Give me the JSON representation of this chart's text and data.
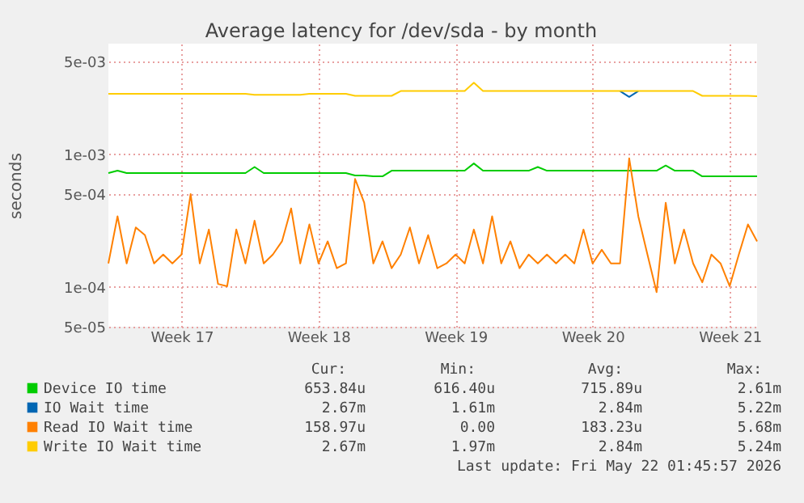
{
  "chart_data": {
    "type": "line",
    "title": "Average latency for /dev/sda - by month",
    "ylabel": "seconds",
    "log": true,
    "grid": true,
    "legend": "bottom",
    "categories": [
      null,
      null,
      null,
      null,
      null,
      null,
      null,
      null,
      "Week 17",
      null,
      null,
      null,
      null,
      null,
      null,
      null,
      null,
      null,
      null,
      null,
      null,
      null,
      null,
      "Week 18",
      null,
      null,
      null,
      null,
      null,
      null,
      null,
      null,
      null,
      null,
      null,
      null,
      null,
      null,
      "Week 19",
      null,
      null,
      null,
      null,
      null,
      null,
      null,
      null,
      null,
      null,
      null,
      null,
      null,
      null,
      "Week 20",
      null,
      null,
      null,
      null,
      null,
      null,
      null,
      null,
      null,
      null,
      null,
      null,
      null,
      null,
      "Week 21",
      null,
      null,
      null
    ],
    "ylim": [
      5e-05,
      0.0068
    ],
    "yticks": [
      {
        "value": 5e-05,
        "label": "5e-05"
      },
      {
        "value": 0.0001,
        "label": "1e-04"
      },
      {
        "value": 0.0005,
        "label": "5e-04"
      },
      {
        "value": 0.001,
        "label": "1e-03"
      },
      {
        "value": 0.005,
        "label": "5e-03"
      }
    ],
    "series": [
      {
        "name": "Device IO time",
        "color": "#00cc00",
        "values": [
          0.00072,
          0.00075,
          0.00072,
          0.00072,
          0.00072,
          0.00072,
          0.00072,
          0.00072,
          0.00072,
          0.00072,
          0.00072,
          0.00072,
          0.00072,
          0.00072,
          0.00072,
          0.00072,
          0.0008,
          0.00072,
          0.00072,
          0.00072,
          0.00072,
          0.00072,
          0.00072,
          0.00072,
          0.00072,
          0.00072,
          0.00072,
          0.00069,
          0.00069,
          0.00068,
          0.00068,
          0.00075,
          0.00075,
          0.00075,
          0.00075,
          0.00075,
          0.00075,
          0.00075,
          0.00075,
          0.00075,
          0.00085,
          0.00075,
          0.00075,
          0.00075,
          0.00075,
          0.00075,
          0.00075,
          0.0008,
          0.00075,
          0.00075,
          0.00075,
          0.00075,
          0.00075,
          0.00075,
          0.00075,
          0.00075,
          0.00075,
          0.00075,
          0.00075,
          0.00075,
          0.00075,
          0.00082,
          0.00075,
          0.00075,
          0.00075,
          0.00068,
          0.00068,
          0.00068,
          0.00068,
          0.00068,
          0.00068,
          0.00068
        ]
      },
      {
        "name": "IO Wait time",
        "color": "#0066b3",
        "values": [
          null,
          null,
          null,
          null,
          null,
          null,
          null,
          null,
          null,
          null,
          null,
          null,
          null,
          null,
          null,
          null,
          null,
          null,
          null,
          null,
          null,
          null,
          null,
          null,
          null,
          null,
          null,
          null,
          null,
          null,
          null,
          null,
          null,
          null,
          null,
          null,
          null,
          null,
          null,
          null,
          null,
          null,
          null,
          null,
          null,
          null,
          null,
          null,
          null,
          null,
          null,
          null,
          null,
          null,
          null,
          null,
          0.00299,
          0.0027,
          0.00299,
          null,
          null,
          null,
          null,
          null,
          null,
          null,
          null,
          null,
          null,
          null,
          null,
          null
        ]
      },
      {
        "name": "Read IO Wait time",
        "color": "#ff8000",
        "values": [
          0.00015,
          0.00034,
          0.00015,
          0.00028,
          0.000245,
          0.00015,
          0.000175,
          0.00015,
          0.000175,
          0.0005,
          0.00015,
          0.00027,
          0.000105,
          0.000101,
          0.00027,
          0.00015,
          0.000315,
          0.00015,
          0.000175,
          0.00022,
          0.00039,
          0.00015,
          0.000295,
          0.00015,
          0.00022,
          0.000138,
          0.00015,
          0.00065,
          0.00043,
          0.00015,
          0.00022,
          0.000138,
          0.000175,
          0.00028,
          0.00015,
          0.000245,
          0.000138,
          0.00015,
          0.000175,
          0.00015,
          0.00027,
          0.00015,
          0.00034,
          0.00015,
          0.00022,
          0.000138,
          0.000175,
          0.00015,
          0.000175,
          0.00015,
          0.000175,
          0.00015,
          0.00027,
          0.00015,
          0.00019,
          0.00015,
          0.00015,
          0.00093,
          0.00034,
          0.000175,
          9.1e-05,
          0.00043,
          0.00015,
          0.00027,
          0.00015,
          0.000108,
          0.000175,
          0.00015,
          0.000101,
          0.000175,
          0.000295,
          0.00022
        ]
      },
      {
        "name": "Write IO Wait time",
        "color": "#ffcc00",
        "values": [
          0.00285,
          0.00285,
          0.00285,
          0.00285,
          0.00285,
          0.00285,
          0.00285,
          0.00285,
          0.00285,
          0.00285,
          0.00285,
          0.00285,
          0.00285,
          0.00285,
          0.00285,
          0.00285,
          0.0028,
          0.0028,
          0.0028,
          0.0028,
          0.0028,
          0.0028,
          0.00285,
          0.00285,
          0.00285,
          0.00285,
          0.00285,
          0.00275,
          0.00275,
          0.00275,
          0.00275,
          0.00275,
          0.00299,
          0.00299,
          0.00299,
          0.00299,
          0.00299,
          0.00299,
          0.00299,
          0.00299,
          0.00345,
          0.00299,
          0.00299,
          0.00299,
          0.00299,
          0.00299,
          0.00299,
          0.00299,
          0.00299,
          0.00299,
          0.00299,
          0.00299,
          0.00299,
          0.00299,
          0.00299,
          0.00299,
          0.00299,
          0.00299,
          0.00299,
          0.00299,
          0.00299,
          0.00299,
          0.00299,
          0.00299,
          0.00299,
          0.00275,
          0.00275,
          0.00275,
          0.00275,
          0.00275,
          0.00275,
          0.00273
        ]
      }
    ],
    "annotations": [
      "Cur:",
      "Min:",
      "Avg:",
      "Max:",
      "653.84u",
      "616.40u",
      "715.89u",
      "2.61m",
      "2.67m",
      "1.61m",
      "2.84m",
      "5.22m",
      "158.97u",
      "0.00",
      "183.23u",
      "5.68m",
      "2.67m",
      "1.97m",
      "2.84m",
      "5.24m",
      "Last update: Fri May 22 01:45:57 2026"
    ]
  }
}
